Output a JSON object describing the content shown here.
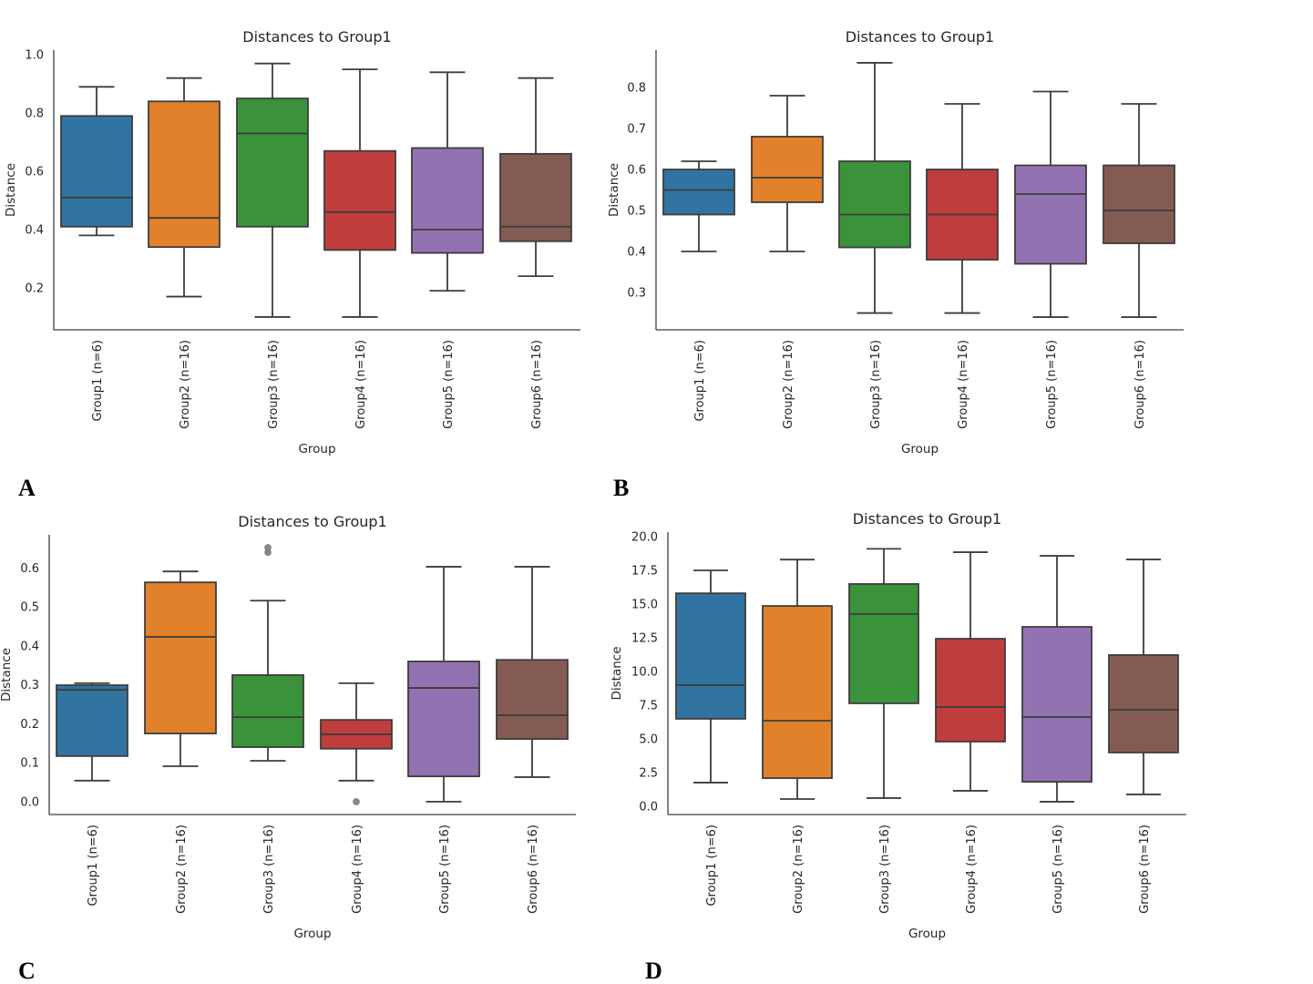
{
  "chart_data": [
    {
      "panel_label": "A",
      "type": "box",
      "title": "Distances to Group1",
      "xlabel": "Group",
      "ylabel": "Distance",
      "categories": [
        "Group1 (n=6)",
        "Group2 (n=16)",
        "Group3 (n=16)",
        "Group4 (n=16)",
        "Group5 (n=16)",
        "Group6 (n=16)"
      ],
      "colors": [
        "#3274a1",
        "#e1812c",
        "#3a923a",
        "#c03d3e",
        "#9372b2",
        "#845b53"
      ],
      "yticks": [
        0.2,
        0.4,
        0.6,
        0.8,
        1.0
      ],
      "ytick_labels": [
        "0.2",
        "0.4",
        "0.6",
        "0.8",
        "1.0"
      ],
      "ylim": [
        0.056,
        1.016
      ],
      "grid": false,
      "boxes": [
        {
          "whislo": 0.38,
          "q1": 0.41,
          "med": 0.51,
          "q3": 0.79,
          "whishi": 0.89,
          "fliers": []
        },
        {
          "whislo": 0.17,
          "q1": 0.34,
          "med": 0.44,
          "q3": 0.84,
          "whishi": 0.92,
          "fliers": []
        },
        {
          "whislo": 0.1,
          "q1": 0.41,
          "med": 0.73,
          "q3": 0.85,
          "whishi": 0.97,
          "fliers": []
        },
        {
          "whislo": 0.1,
          "q1": 0.33,
          "med": 0.46,
          "q3": 0.67,
          "whishi": 0.95,
          "fliers": []
        },
        {
          "whislo": 0.19,
          "q1": 0.32,
          "med": 0.4,
          "q3": 0.68,
          "whishi": 0.94,
          "fliers": []
        },
        {
          "whislo": 0.24,
          "q1": 0.36,
          "med": 0.41,
          "q3": 0.66,
          "whishi": 0.92,
          "fliers": []
        }
      ]
    },
    {
      "panel_label": "B",
      "type": "box",
      "title": "Distances to Group1",
      "xlabel": "Group",
      "ylabel": "Distance",
      "categories": [
        "Group1 (n=6)",
        "Group2 (n=16)",
        "Group3 (n=16)",
        "Group4 (n=16)",
        "Group5 (n=16)",
        "Group6 (n=16)"
      ],
      "colors": [
        "#3274a1",
        "#e1812c",
        "#3a923a",
        "#c03d3e",
        "#9372b2",
        "#845b53"
      ],
      "yticks": [
        0.3,
        0.4,
        0.5,
        0.6,
        0.7,
        0.8
      ],
      "ytick_labels": [
        "0.3",
        "0.4",
        "0.5",
        "0.6",
        "0.7",
        "0.8"
      ],
      "ylim": [
        0.209,
        0.891
      ],
      "grid": false,
      "boxes": [
        {
          "whislo": 0.4,
          "q1": 0.49,
          "med": 0.55,
          "q3": 0.6,
          "whishi": 0.62,
          "fliers": []
        },
        {
          "whislo": 0.4,
          "q1": 0.52,
          "med": 0.58,
          "q3": 0.68,
          "whishi": 0.78,
          "fliers": []
        },
        {
          "whislo": 0.25,
          "q1": 0.41,
          "med": 0.49,
          "q3": 0.62,
          "whishi": 0.86,
          "fliers": []
        },
        {
          "whislo": 0.25,
          "q1": 0.38,
          "med": 0.49,
          "q3": 0.6,
          "whishi": 0.76,
          "fliers": []
        },
        {
          "whislo": 0.24,
          "q1": 0.37,
          "med": 0.54,
          "q3": 0.61,
          "whishi": 0.79,
          "fliers": []
        },
        {
          "whislo": 0.24,
          "q1": 0.42,
          "med": 0.5,
          "q3": 0.61,
          "whishi": 0.76,
          "fliers": []
        }
      ]
    },
    {
      "panel_label": "C",
      "type": "box",
      "title": "Distances to Group1",
      "xlabel": "Group",
      "ylabel": "Distance",
      "categories": [
        "Group1 (n=6)",
        "Group2 (n=16)",
        "Group3 (n=16)",
        "Group4 (n=16)",
        "Group5 (n=16)",
        "Group6 (n=16)"
      ],
      "colors": [
        "#3274a1",
        "#e1812c",
        "#3a923a",
        "#c03d3e",
        "#9372b2",
        "#845b53"
      ],
      "yticks": [
        0.0,
        0.1,
        0.2,
        0.3,
        0.4,
        0.5,
        0.6
      ],
      "ytick_labels": [
        "0.0",
        "0.1",
        "0.2",
        "0.3",
        "0.4",
        "0.5",
        "0.6"
      ],
      "ylim": [
        -0.033,
        0.685
      ],
      "grid": false,
      "boxes": [
        {
          "whislo": 0.054,
          "q1": 0.117,
          "med": 0.287,
          "q3": 0.299,
          "whishi": 0.304,
          "fliers": []
        },
        {
          "whislo": 0.091,
          "q1": 0.175,
          "med": 0.423,
          "q3": 0.563,
          "whishi": 0.591,
          "fliers": []
        },
        {
          "whislo": 0.105,
          "q1": 0.14,
          "med": 0.217,
          "q3": 0.325,
          "whishi": 0.516,
          "fliers": [
            0.64,
            0.652
          ]
        },
        {
          "whislo": 0.054,
          "q1": 0.136,
          "med": 0.173,
          "q3": 0.21,
          "whishi": 0.304,
          "fliers": [
            0.0
          ]
        },
        {
          "whislo": 0.0,
          "q1": 0.065,
          "med": 0.292,
          "q3": 0.36,
          "whishi": 0.603,
          "fliers": []
        },
        {
          "whislo": 0.063,
          "q1": 0.161,
          "med": 0.222,
          "q3": 0.364,
          "whishi": 0.603,
          "fliers": []
        }
      ]
    },
    {
      "panel_label": "D",
      "type": "box",
      "title": "Distances to Group1",
      "xlabel": "Group",
      "ylabel": "Distance",
      "categories": [
        "Group1 (n=6)",
        "Group2 (n=16)",
        "Group3 (n=16)",
        "Group4 (n=16)",
        "Group5 (n=16)",
        "Group6 (n=16)"
      ],
      "colors": [
        "#3274a1",
        "#e1812c",
        "#3a923a",
        "#c03d3e",
        "#9372b2",
        "#845b53"
      ],
      "yticks": [
        0.0,
        2.5,
        5.0,
        7.5,
        10.0,
        12.5,
        15.0,
        17.5,
        20.0
      ],
      "ytick_labels": [
        "0.0",
        "2.5",
        "5.0",
        "7.5",
        "10.0",
        "12.5",
        "15.0",
        "17.5",
        "20.0"
      ],
      "ylim": [
        -0.61,
        20.34
      ],
      "grid": false,
      "boxes": [
        {
          "whislo": 1.76,
          "q1": 6.49,
          "med": 8.99,
          "q3": 15.8,
          "whishi": 17.5,
          "fliers": []
        },
        {
          "whislo": 0.54,
          "q1": 2.09,
          "med": 6.35,
          "q3": 14.86,
          "whishi": 18.3,
          "fliers": []
        },
        {
          "whislo": 0.61,
          "q1": 7.64,
          "med": 14.26,
          "q3": 16.49,
          "whishi": 19.1,
          "fliers": []
        },
        {
          "whislo": 1.15,
          "q1": 4.8,
          "med": 7.36,
          "q3": 12.43,
          "whishi": 18.85,
          "fliers": []
        },
        {
          "whislo": 0.34,
          "q1": 1.82,
          "med": 6.62,
          "q3": 13.31,
          "whishi": 18.58,
          "fliers": []
        },
        {
          "whislo": 0.88,
          "q1": 3.99,
          "med": 7.16,
          "q3": 11.22,
          "whishi": 18.31,
          "fliers": []
        }
      ]
    }
  ]
}
